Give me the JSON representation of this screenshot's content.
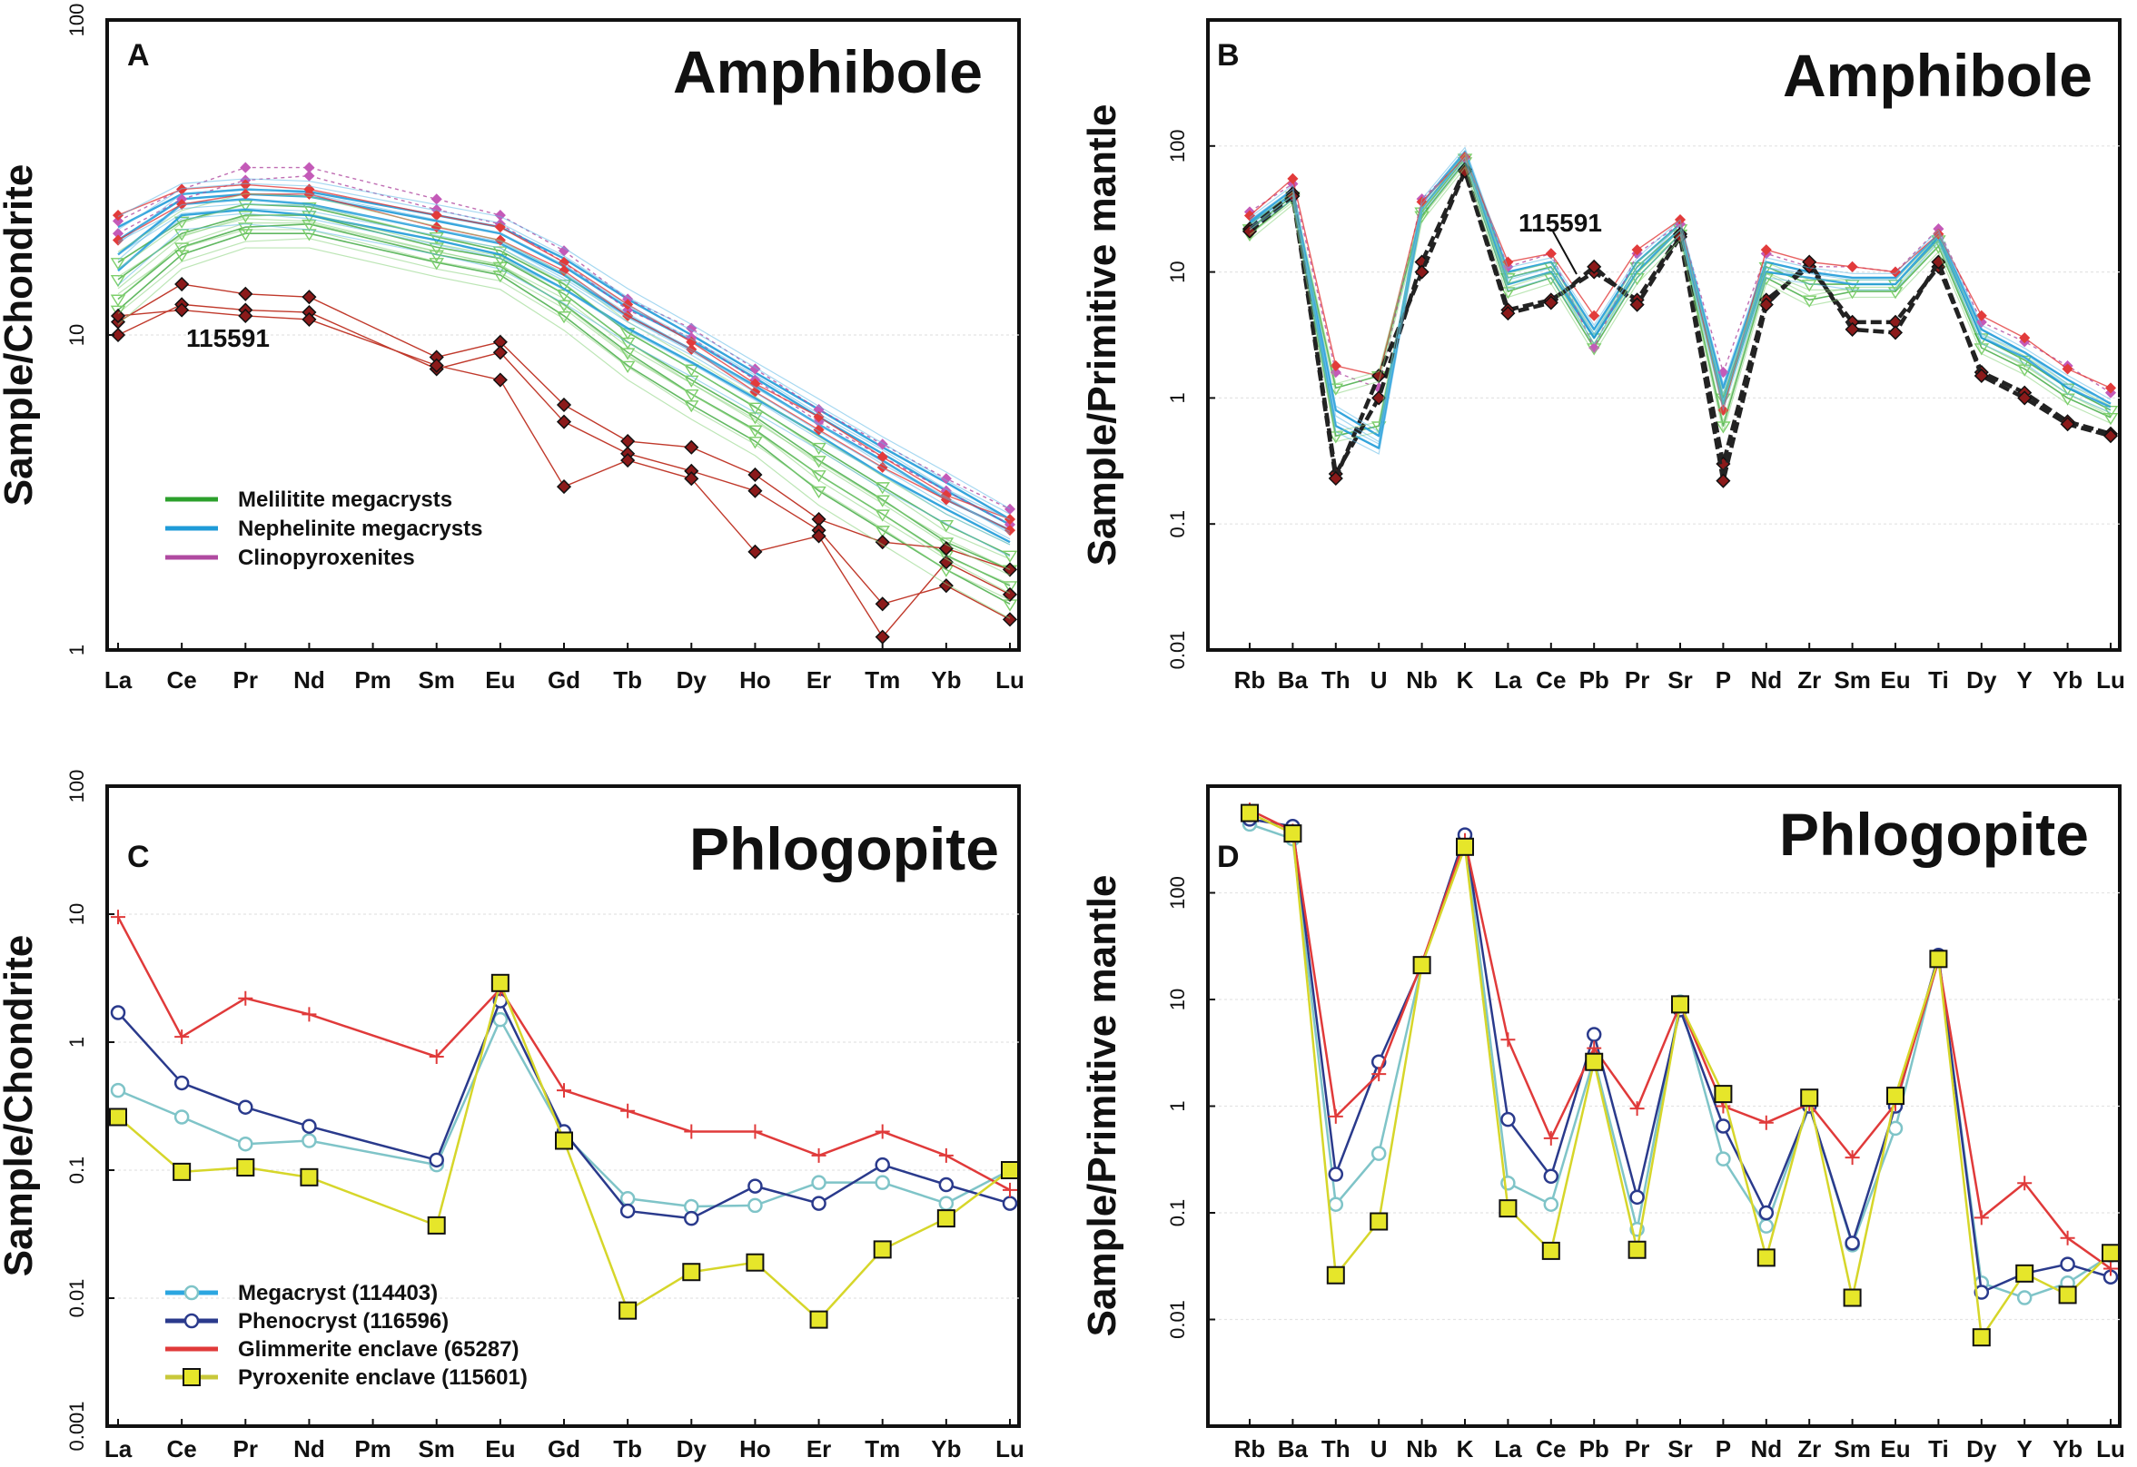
{
  "figure": {
    "panels": [
      {
        "id": "A",
        "letter": "A",
        "title": "Amphibole",
        "ylabel": "Sample/Chondrite",
        "annotation": "115591"
      },
      {
        "id": "B",
        "letter": "B",
        "title": "Amphibole",
        "ylabel": "Sample/Primitive mantle",
        "annotation": "115591"
      },
      {
        "id": "C",
        "letter": "C",
        "title": "Phlogopite",
        "ylabel": "Sample/Chondrite"
      },
      {
        "id": "D",
        "letter": "D",
        "title": "Phlogopite",
        "ylabel": "Sample/Primitive mantle"
      }
    ]
  },
  "colors": {
    "melilitite": "#2ca02c",
    "nephelinite": "#1f9bd8",
    "clinopyroxenite": "#b04aa0",
    "red": "#e23b3b",
    "megacryst": "#7fc4c8",
    "phenocryst": "#2a3a8c",
    "glimmerite": "#e03a3a",
    "pyroxenite": "#e6e62a"
  },
  "chart_data": [
    {
      "panel": "A",
      "type": "line",
      "yscale": "log",
      "ylim": [
        1,
        100
      ],
      "title": "Amphibole",
      "ylabel": "Sample/Chondrite",
      "yticks": [
        "1",
        "10",
        "100"
      ],
      "categories": [
        "La",
        "Ce",
        "Pr",
        "Nd",
        "Pm",
        "Sm",
        "Eu",
        "Gd",
        "Tb",
        "Dy",
        "Ho",
        "Er",
        "Tm",
        "Yb",
        "Lu"
      ],
      "legend": [
        "Melilitite megacrysts",
        "Nephelinite megacrysts",
        "Clinopyroxenites"
      ],
      "annotation": "115591",
      "series": [
        {
          "name": "Melilitite megacrysts",
          "group": "green",
          "values": [
            12,
            18,
            21,
            21,
            null,
            17,
            15.5,
            11.5,
            8,
            6,
            4.6,
            3.2,
            2.4,
            1.8,
            1.4
          ]
        },
        {
          "name": "Melilitite megacrysts",
          "group": "green",
          "values": [
            13,
            19,
            22,
            22.5,
            null,
            18,
            16.5,
            12.5,
            8.8,
            6.5,
            5,
            3.6,
            2.7,
            2,
            1.6
          ]
        },
        {
          "name": "Melilitite megacrysts",
          "group": "green",
          "values": [
            15,
            21,
            24,
            24,
            null,
            19,
            17.5,
            13.5,
            9.5,
            7.2,
            5.5,
            4,
            3,
            2.2,
            1.8
          ]
        },
        {
          "name": "Melilitite megacrysts",
          "group": "green",
          "values": [
            17,
            23,
            26,
            25.5,
            null,
            20.5,
            18.5,
            14.5,
            10.2,
            7.8,
            5.9,
            4.4,
            3.3,
            2.5,
            2
          ]
        },
        {
          "name": "Nephelinite megacrysts",
          "group": "blue",
          "values": [
            16,
            24,
            25,
            24,
            null,
            20,
            18,
            14,
            10.5,
            8.2,
            6.3,
            4.8,
            3.6,
            2.8,
            2.2
          ]
        },
        {
          "name": "Nephelinite megacrysts",
          "group": "blue",
          "values": [
            18,
            26,
            27,
            26,
            null,
            21.5,
            19.5,
            15.5,
            11.5,
            9,
            6.9,
            5.2,
            4,
            3,
            2.4
          ]
        },
        {
          "name": "Nephelinite megacrysts",
          "group": "blue",
          "values": [
            20,
            27,
            28,
            27.5,
            null,
            23,
            21,
            16.5,
            12.2,
            9.6,
            7.3,
            5.5,
            4.2,
            3.2,
            2.5
          ]
        },
        {
          "name": "Nephelinite megacrysts",
          "group": "blue",
          "values": [
            22,
            28,
            29,
            28.5,
            null,
            24,
            22,
            17.5,
            13,
            10,
            7.6,
            5.8,
            4.4,
            3.4,
            2.6
          ]
        },
        {
          "name": "Clinopyroxenites",
          "group": "purple",
          "values": [
            23,
            29,
            34,
            34,
            null,
            27,
            24,
            18.5,
            13,
            10.5,
            7.8,
            5.8,
            4.5,
            3.5,
            2.8
          ]
        },
        {
          "name": "Clinopyroxenites",
          "group": "purple",
          "values": [
            21,
            27,
            31,
            32,
            null,
            25,
            22.5,
            17,
            12,
            9.8,
            7.2,
            5.3,
            4.1,
            3.2,
            2.5
          ]
        },
        {
          "name": "Clinopyroxenites",
          "group": "red",
          "values": [
            24,
            29,
            30,
            29,
            null,
            24,
            22,
            17,
            12.5,
            9.5,
            7,
            5.5,
            4.1,
            3.1,
            2.6
          ]
        },
        {
          "name": "Clinopyroxenites",
          "group": "red",
          "values": [
            20,
            26,
            28,
            28,
            null,
            22,
            20,
            16,
            11.5,
            9,
            6.6,
            5,
            3.8,
            3,
            2.4
          ]
        },
        {
          "name": "115591",
          "group": "dark",
          "values": [
            11,
            14.5,
            13.5,
            13.2,
            null,
            8.5,
            9.5,
            6,
            4.6,
            4.4,
            3.6,
            2.6,
            2.2,
            2.1,
            1.8
          ]
        },
        {
          "name": "115591",
          "group": "dark",
          "values": [
            10,
            12.5,
            12,
            11.8,
            null,
            7.8,
            8.8,
            5.3,
            4.2,
            3.7,
            3.2,
            2.4,
            1.4,
            1.6,
            1.25
          ]
        },
        {
          "name": "115591",
          "group": "dark",
          "values": [
            11.5,
            12,
            11.5,
            11.2,
            null,
            8,
            7.2,
            3.3,
            4,
            3.5,
            2.05,
            2.3,
            1.1,
            1.9,
            1.5
          ]
        }
      ]
    },
    {
      "panel": "B",
      "type": "line",
      "yscale": "log",
      "ylim": [
        0.01,
        1000
      ],
      "title": "Amphibole",
      "ylabel": "Sample/Primitive mantle",
      "yticks": [
        "0.01",
        "0.1",
        "1",
        "10",
        "100"
      ],
      "categories": [
        "Rb",
        "Ba",
        "Th",
        "U",
        "Nb",
        "K",
        "La",
        "Ce",
        "Pb",
        "Pr",
        "Sr",
        "P",
        "Nd",
        "Zr",
        "Sm",
        "Eu",
        "Ti",
        "Dy",
        "Y",
        "Yb",
        "Lu"
      ],
      "annotation": "115591",
      "series": [
        {
          "name": "green",
          "group": "green",
          "values": [
            22,
            40,
            1.2,
            1.5,
            30,
            80,
            9,
            11,
            3,
            11,
            22,
            1,
            11,
            8,
            8,
            8,
            18,
            3,
            2,
            1.2,
            0.8
          ]
        },
        {
          "name": "green",
          "group": "green",
          "values": [
            20,
            38,
            0.5,
            0.6,
            28,
            75,
            7,
            9,
            2.5,
            9,
            20,
            0.6,
            9,
            6,
            7,
            7,
            16,
            2.5,
            1.7,
            1,
            0.7
          ]
        },
        {
          "name": "blue",
          "group": "blue",
          "values": [
            25,
            45,
            0.8,
            0.5,
            35,
            90,
            10,
            12,
            3.5,
            12,
            24,
            1.2,
            12,
            10,
            9,
            9,
            20,
            3.5,
            2.3,
            1.4,
            0.9
          ]
        },
        {
          "name": "blue",
          "group": "blue",
          "values": [
            24,
            42,
            0.6,
            0.4,
            32,
            85,
            8,
            10,
            3,
            10,
            22,
            0.9,
            10,
            9,
            8,
            8,
            19,
            3,
            2.1,
            1.2,
            0.85
          ]
        },
        {
          "name": "purple",
          "group": "purple",
          "values": [
            30,
            50,
            1.6,
            1.2,
            38,
            80,
            11,
            14,
            2.5,
            14,
            24,
            1.6,
            14,
            11,
            11,
            10,
            22,
            4,
            2.8,
            1.8,
            1.1
          ]
        },
        {
          "name": "red",
          "group": "red",
          "values": [
            28,
            55,
            1.8,
            1.5,
            36,
            82,
            12,
            14,
            4.5,
            15,
            26,
            0.8,
            15,
            12,
            11,
            10,
            20,
            4.5,
            3,
            1.7,
            1.2
          ]
        },
        {
          "name": "115591",
          "group": "dark",
          "values": [
            22,
            42,
            0.25,
            1.0,
            12,
            65,
            5,
            6,
            10,
            6,
            20,
            0.3,
            6,
            11,
            4,
            4,
            11,
            1.6,
            1.1,
            0.65,
            0.52
          ]
        },
        {
          "name": "115591",
          "group": "dark",
          "values": [
            21,
            40,
            0.23,
            1.5,
            10,
            63,
            4.7,
            5.7,
            11,
            5.5,
            19,
            0.22,
            5.5,
            12,
            3.5,
            3.3,
            12,
            1.5,
            1.0,
            0.62,
            0.5
          ]
        }
      ]
    },
    {
      "panel": "C",
      "type": "line",
      "yscale": "log",
      "ylim": [
        0.001,
        100
      ],
      "title": "Phlogopite",
      "ylabel": "Sample/Chondrite",
      "yticks": [
        "0.001",
        "0.01",
        "0.1",
        "1",
        "10",
        "100"
      ],
      "categories": [
        "La",
        "Ce",
        "Pr",
        "Nd",
        "Pm",
        "Sm",
        "Eu",
        "Gd",
        "Tb",
        "Dy",
        "Ho",
        "Er",
        "Tm",
        "Yb",
        "Lu"
      ],
      "legend": [
        "Megacryst (114403)",
        "Phenocryst (116596)",
        "Glimmerite enclave (65287)",
        "Pyroxenite enclave (115601)"
      ],
      "series": [
        {
          "name": "Megacryst (114403)",
          "values": [
            0.42,
            0.26,
            0.16,
            0.17,
            null,
            0.11,
            1.5,
            0.19,
            0.06,
            0.052,
            0.053,
            0.08,
            0.08,
            0.055,
            0.1
          ]
        },
        {
          "name": "Phenocryst (116596)",
          "values": [
            1.7,
            0.48,
            0.31,
            0.22,
            null,
            0.12,
            2.1,
            0.2,
            0.048,
            0.042,
            0.075,
            0.055,
            0.11,
            0.077,
            0.055
          ]
        },
        {
          "name": "Glimmerite enclave (65287)",
          "values": [
            9.5,
            1.1,
            2.2,
            1.65,
            null,
            0.77,
            2.6,
            0.42,
            0.29,
            0.2,
            0.2,
            0.13,
            0.2,
            0.13,
            0.07
          ]
        },
        {
          "name": "Pyroxenite enclave (115601)",
          "values": [
            0.26,
            0.097,
            0.105,
            0.088,
            null,
            0.037,
            2.9,
            0.17,
            0.008,
            0.016,
            0.019,
            0.0068,
            0.024,
            0.042,
            0.1
          ]
        }
      ]
    },
    {
      "panel": "D",
      "type": "line",
      "yscale": "log",
      "ylim": [
        0.001,
        1000
      ],
      "title": "Phlogopite",
      "ylabel": "Sample/Primitive mantle",
      "yticks": [
        "0.01",
        "0.1",
        "1",
        "10",
        "100"
      ],
      "categories": [
        "Rb",
        "Ba",
        "Th",
        "U",
        "Nb",
        "K",
        "La",
        "Ce",
        "Pb",
        "Pr",
        "Sr",
        "P",
        "Nd",
        "Zr",
        "Sm",
        "Eu",
        "Ti",
        "Dy",
        "Y",
        "Yb",
        "Lu"
      ],
      "series": [
        {
          "name": "Megacryst (114403)",
          "values": [
            440,
            320,
            0.12,
            0.36,
            21,
            330,
            0.19,
            0.12,
            2.8,
            0.07,
            9.5,
            0.32,
            0.075,
            1.0,
            0.05,
            0.62,
            25,
            0.022,
            0.016,
            0.022,
            0.04
          ]
        },
        {
          "name": "Phenocryst (116596)",
          "values": [
            490,
            420,
            0.23,
            2.6,
            21,
            350,
            0.75,
            0.22,
            4.7,
            0.14,
            8,
            0.65,
            0.1,
            1.0,
            0.052,
            1.0,
            26,
            0.018,
            0.027,
            0.033,
            0.025
          ]
        },
        {
          "name": "Glimmerite enclave (65287)",
          "values": [
            600,
            380,
            0.8,
            2.0,
            22,
            310,
            4.2,
            0.5,
            3.5,
            0.95,
            9,
            1.0,
            0.7,
            1.05,
            0.33,
            1.05,
            23,
            0.09,
            0.19,
            0.058,
            0.03
          ]
        },
        {
          "name": "Pyroxenite enclave (115601)",
          "values": [
            560,
            360,
            0.026,
            0.083,
            21,
            270,
            0.11,
            0.044,
            2.6,
            0.045,
            9,
            1.3,
            0.038,
            1.2,
            0.016,
            1.25,
            24,
            0.0068,
            0.027,
            0.017,
            0.042
          ]
        }
      ]
    }
  ]
}
